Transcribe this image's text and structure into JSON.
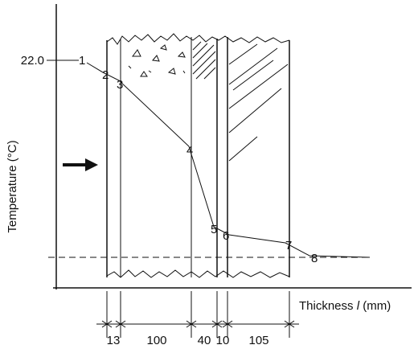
{
  "axes": {
    "y_label": "Temperature (°C)",
    "x_label_pre": "Thickness ",
    "x_label_var": "l",
    "x_label_post": " (mm)",
    "y_tick": "22.0"
  },
  "points": [
    "1",
    "2",
    "3",
    "4",
    "5",
    "6",
    "7",
    "8"
  ],
  "thicknesses": [
    "13",
    "100",
    "40",
    "10",
    "105"
  ]
}
